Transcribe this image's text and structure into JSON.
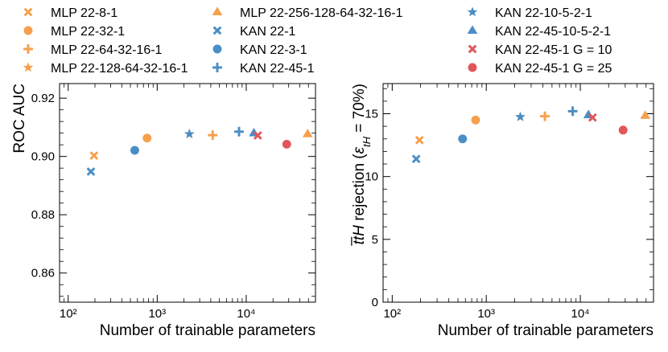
{
  "series_styles": [
    {
      "name": "MLP 22-8-1",
      "marker": "x",
      "color": "#f6a04d"
    },
    {
      "name": "MLP 22-32-1",
      "marker": "circle",
      "color": "#f6a04d"
    },
    {
      "name": "MLP 22-64-32-16-1",
      "marker": "plus",
      "color": "#f6a04d"
    },
    {
      "name": "MLP 22-128-64-32-16-1",
      "marker": "star",
      "color": "#f6a04d"
    },
    {
      "name": "MLP 22-256-128-64-32-16-1",
      "marker": "triangle",
      "color": "#f6a04d"
    },
    {
      "name": "KAN 22-1",
      "marker": "x",
      "color": "#4a8ec6"
    },
    {
      "name": "KAN 22-3-1",
      "marker": "circle",
      "color": "#4a8ec6"
    },
    {
      "name": "KAN 22-45-1",
      "marker": "plus",
      "color": "#4a8ec6"
    },
    {
      "name": "KAN 22-10-5-2-1",
      "marker": "star",
      "color": "#4a8ec6"
    },
    {
      "name": "KAN 22-45-10-5-2-1",
      "marker": "triangle",
      "color": "#4a8ec6"
    },
    {
      "name": "KAN 22-45-1 G = 10",
      "marker": "x",
      "color": "#e0565a"
    },
    {
      "name": "KAN 22-45-1 G = 25",
      "marker": "circle",
      "color": "#e0565a"
    }
  ],
  "legend": {
    "placement": "top",
    "columns": [
      [
        "MLP 22-8-1",
        "MLP 22-32-1",
        "MLP 22-64-32-16-1",
        "MLP 22-128-64-32-16-1"
      ],
      [
        "MLP 22-256-128-64-32-16-1",
        "KAN 22-1",
        "KAN 22-3-1",
        "KAN 22-45-1"
      ],
      [
        "KAN 22-10-5-2-1",
        "KAN 22-45-10-5-2-1",
        "KAN 22-45-1 G = 10",
        "KAN 22-45-1 G = 25"
      ]
    ]
  },
  "chart_data": [
    {
      "type": "scatter",
      "xlabel": "Number of trainable parameters",
      "ylabel": "ROC AUC",
      "xscale": "log",
      "xlim": [
        80,
        60000
      ],
      "ylim": [
        0.85,
        0.925
      ],
      "xticks": [
        100,
        1000,
        10000
      ],
      "xtick_labels": [
        "10²",
        "10³",
        "10⁴"
      ],
      "yticks": [
        0.86,
        0.88,
        0.9,
        0.92
      ],
      "ytick_labels": [
        "0.86",
        "0.88",
        "0.90",
        "0.92"
      ],
      "grid": false,
      "points": [
        {
          "series": "MLP 22-8-1",
          "x": 195,
          "y": 0.9003
        },
        {
          "series": "MLP 22-32-1",
          "x": 770,
          "y": 0.9063
        },
        {
          "series": "MLP 22-64-32-16-1",
          "x": 4200,
          "y": 0.9073
        },
        {
          "series": "MLP 22-128-64-32-16-1",
          "x": 2300,
          "y": 0.9077
        },
        {
          "series": "MLP 22-256-128-64-32-16-1",
          "x": 49000,
          "y": 0.9077
        },
        {
          "series": "KAN 22-1",
          "x": 180,
          "y": 0.8948
        },
        {
          "series": "KAN 22-3-1",
          "x": 560,
          "y": 0.9021
        },
        {
          "series": "KAN 22-45-1",
          "x": 8300,
          "y": 0.9085
        },
        {
          "series": "KAN 22-10-5-2-1",
          "x": 2300,
          "y": 0.9077
        },
        {
          "series": "KAN 22-45-10-5-2-1",
          "x": 12200,
          "y": 0.908
        },
        {
          "series": "KAN 22-45-1 G = 10",
          "x": 13500,
          "y": 0.9072
        },
        {
          "series": "KAN 22-45-1 G = 25",
          "x": 28500,
          "y": 0.9042
        }
      ]
    },
    {
      "type": "scatter",
      "xlabel": "Number of trainable parameters",
      "ylabel": "ttH rejection (ε_tH = 70%)",
      "xscale": "log",
      "xlim": [
        80,
        60000
      ],
      "ylim": [
        0,
        17.4
      ],
      "xticks": [
        100,
        1000,
        10000
      ],
      "xtick_labels": [
        "10²",
        "10³",
        "10⁴"
      ],
      "yticks": [
        0,
        5,
        10,
        15
      ],
      "ytick_labels": [
        "0",
        "5",
        "10",
        "15"
      ],
      "grid": false,
      "points": [
        {
          "series": "MLP 22-8-1",
          "x": 195,
          "y": 12.9
        },
        {
          "series": "MLP 22-32-1",
          "x": 770,
          "y": 14.5
        },
        {
          "series": "MLP 22-64-32-16-1",
          "x": 4200,
          "y": 14.8
        },
        {
          "series": "MLP 22-128-64-32-16-1",
          "x": 2300,
          "y": 14.75
        },
        {
          "series": "MLP 22-256-128-64-32-16-1",
          "x": 49000,
          "y": 14.85
        },
        {
          "series": "KAN 22-1",
          "x": 180,
          "y": 11.4
        },
        {
          "series": "KAN 22-3-1",
          "x": 560,
          "y": 13.0
        },
        {
          "series": "KAN 22-45-1",
          "x": 8300,
          "y": 15.2
        },
        {
          "series": "KAN 22-10-5-2-1",
          "x": 2300,
          "y": 14.75
        },
        {
          "series": "KAN 22-45-10-5-2-1",
          "x": 12200,
          "y": 14.9
        },
        {
          "series": "KAN 22-45-1 G = 10",
          "x": 13500,
          "y": 14.7
        },
        {
          "series": "KAN 22-45-1 G = 25",
          "x": 28500,
          "y": 13.7
        }
      ]
    }
  ]
}
